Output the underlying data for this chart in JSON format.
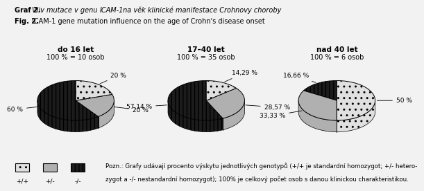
{
  "title_line1": "Graf 2. Vliv mutace v genu ICAM-1 na věk klinické manifestace Crohnovy choroby",
  "title_line1_normal": "Graf 2. ",
  "title_line1_italic": "Vliv mutace v genu ",
  "title_line1_italic2": "ICAM-1",
  "title_line1_rest": " na věk klinické manifestace Crohnovy choroby",
  "title_line2": "Fig. 2. ICAM-1 gene mutation influence on the age of Crohn's disease onset",
  "charts": [
    {
      "label": "do 16 let",
      "sublabel": "100 % = 10 osob",
      "slices": [
        20.0,
        20.0,
        60.0
      ],
      "pct_labels": [
        "20 %",
        "20 %",
        "60 %"
      ],
      "slice_order": [
        0,
        1,
        2
      ],
      "start_angle": 90
    },
    {
      "label": "17–40 let",
      "sublabel": "100 % = 35 osob",
      "slices": [
        14.29,
        28.57,
        57.14
      ],
      "pct_labels": [
        "14,29 %",
        "28,57 %",
        "57,14 %"
      ],
      "slice_order": [
        0,
        1,
        2
      ],
      "start_angle": 90
    },
    {
      "label": "nad 40 let",
      "sublabel": "100 % = 6 osob",
      "slices": [
        50.0,
        33.33,
        16.66
      ],
      "pct_labels": [
        "50 %",
        "33,33 %",
        "16,66 %"
      ],
      "slice_order": [
        0,
        1,
        2
      ],
      "start_angle": 90
    }
  ],
  "colors": [
    "#e0e0e0",
    "#b0b0b0",
    "#1c1c1c"
  ],
  "hatches": [
    "..",
    "",
    "|||"
  ],
  "hatch_colors": [
    "#888888",
    "",
    ""
  ],
  "legend_labels": [
    "+/+",
    "+/-",
    "-/-"
  ],
  "note_text1": "Pozn.: Grafy udávají procento výskytu jednotlivých genotypů (+/+ je standardní homozygot; +/- hetero-",
  "note_text2": "zygot a -/- nestandardní homozygot); 100% je celkový počet osob s danou klinickou charakteristikou.",
  "bg_color": "#f2f2f2",
  "title_fontsize": 7.0,
  "label_fontsize": 7.5,
  "sublabel_fontsize": 7.0,
  "pct_fontsize": 6.5,
  "note_fontsize": 6.2
}
